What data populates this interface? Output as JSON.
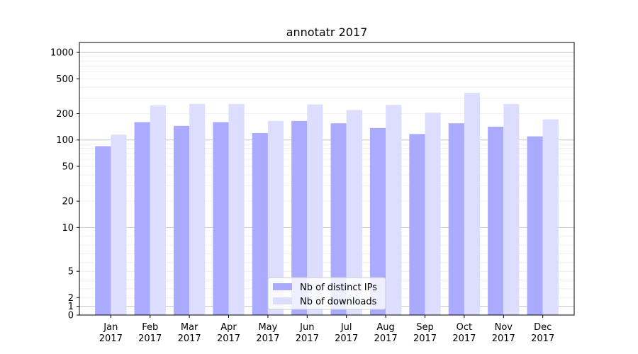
{
  "chart_data": {
    "type": "bar",
    "title": "annotatr 2017",
    "xlabel": "",
    "ylabel": "",
    "yscale": "symlog",
    "ylim": [
      0,
      1300
    ],
    "yticks": [
      0,
      1,
      2,
      5,
      10,
      20,
      50,
      100,
      200,
      500,
      1000
    ],
    "grid": true,
    "legend_position": "bottom-center",
    "categories": [
      [
        "Jan",
        "2017"
      ],
      [
        "Feb",
        "2017"
      ],
      [
        "Mar",
        "2017"
      ],
      [
        "Apr",
        "2017"
      ],
      [
        "May",
        "2017"
      ],
      [
        "Jun",
        "2017"
      ],
      [
        "Jul",
        "2017"
      ],
      [
        "Aug",
        "2017"
      ],
      [
        "Sep",
        "2017"
      ],
      [
        "Oct",
        "2017"
      ],
      [
        "Nov",
        "2017"
      ],
      [
        "Dec",
        "2017"
      ]
    ],
    "series": [
      {
        "name": "Nb of distinct IPs",
        "color": "#aaaaff",
        "values": [
          85,
          160,
          145,
          160,
          120,
          165,
          155,
          137,
          117,
          155,
          142,
          110
        ]
      },
      {
        "name": "Nb of downloads",
        "color": "#ddddff",
        "values": [
          115,
          248,
          258,
          258,
          165,
          255,
          220,
          252,
          205,
          345,
          258,
          172
        ]
      }
    ]
  }
}
